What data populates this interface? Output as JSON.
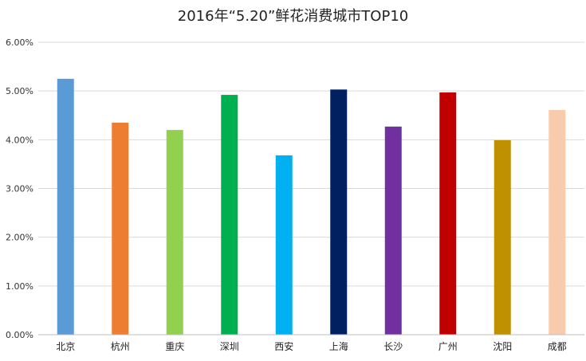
{
  "chart_data": {
    "type": "bar",
    "title": "2016年“5.20”鲜花消费城市TOP10",
    "categories": [
      "北京",
      "杭州",
      "重庆",
      "深圳",
      "西安",
      "上海",
      "长沙",
      "广州",
      "沈阳",
      "成都"
    ],
    "values": [
      5.25,
      4.35,
      4.2,
      4.92,
      3.68,
      5.03,
      4.27,
      4.97,
      3.99,
      4.61
    ],
    "value_unit": "%",
    "colors": [
      "#5b9bd5",
      "#ed7d31",
      "#92d050",
      "#00b050",
      "#00b0f0",
      "#002060",
      "#7030a0",
      "#c00000",
      "#bf9000",
      "#f8cbad"
    ],
    "ylim": [
      0,
      6
    ],
    "yticks": [
      "0.00%",
      "1.00%",
      "2.00%",
      "3.00%",
      "4.00%",
      "5.00%",
      "6.00%"
    ],
    "grid": true,
    "legend": "none"
  }
}
